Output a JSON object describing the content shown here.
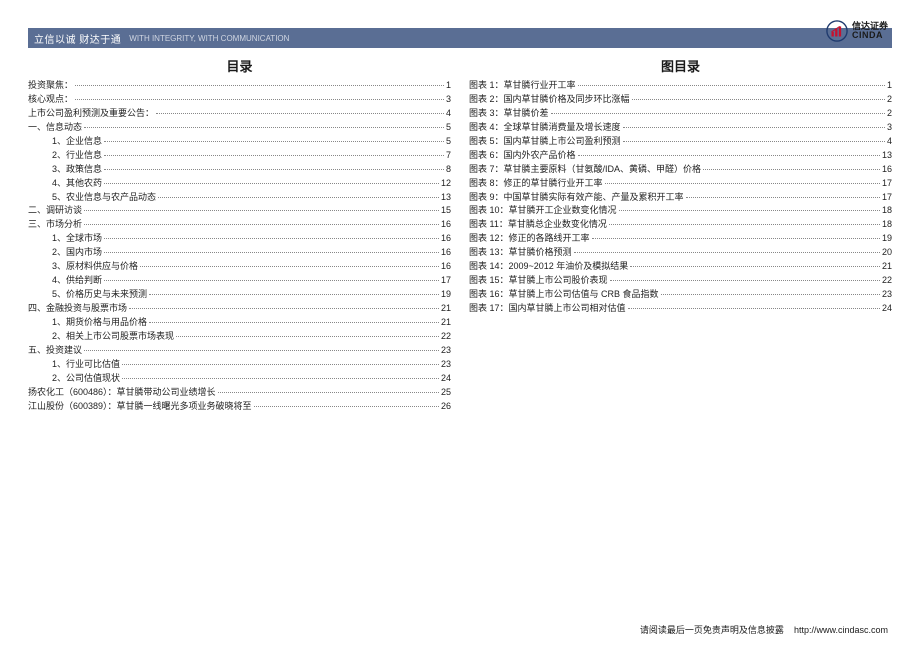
{
  "header": {
    "title": "立信以诚  财达于通",
    "subtitle": "WITH INTEGRITY, WITH COMMUNICATION"
  },
  "logo": {
    "cn": "信达证券",
    "en": "CINDA"
  },
  "left": {
    "title": "目录",
    "items": [
      {
        "label": "投资聚焦：",
        "page": "1",
        "indent": 0
      },
      {
        "label": "核心观点：",
        "page": "3",
        "indent": 0
      },
      {
        "label": "上市公司盈利预测及重要公告：",
        "page": "4",
        "indent": 0
      },
      {
        "label": "一、信息动态",
        "page": "5",
        "indent": 0
      },
      {
        "label": "1、企业信息",
        "page": "5",
        "indent": 1
      },
      {
        "label": "2、行业信息",
        "page": "7",
        "indent": 1
      },
      {
        "label": "3、政策信息",
        "page": "8",
        "indent": 1
      },
      {
        "label": "4、其他农药",
        "page": "12",
        "indent": 1
      },
      {
        "label": "5、农业信息与农产品动态",
        "page": "13",
        "indent": 1
      },
      {
        "label": "二、调研访谈",
        "page": "15",
        "indent": 0
      },
      {
        "label": "三、市场分析",
        "page": "16",
        "indent": 0
      },
      {
        "label": "1、全球市场",
        "page": "16",
        "indent": 1
      },
      {
        "label": "2、国内市场",
        "page": "16",
        "indent": 1
      },
      {
        "label": "3、原材料供应与价格",
        "page": "16",
        "indent": 1
      },
      {
        "label": "4、供给判断",
        "page": "17",
        "indent": 1
      },
      {
        "label": "5、价格历史与未来预测",
        "page": "19",
        "indent": 1
      },
      {
        "label": "四、金融投资与股票市场",
        "page": "21",
        "indent": 0
      },
      {
        "label": "1、期货价格与用品价格",
        "page": "21",
        "indent": 1
      },
      {
        "label": "2、相关上市公司股票市场表现",
        "page": "22",
        "indent": 1
      },
      {
        "label": "五、投资建议",
        "page": "23",
        "indent": 0
      },
      {
        "label": "1、行业可比估值",
        "page": "23",
        "indent": 1
      },
      {
        "label": "2、公司估值现状",
        "page": "24",
        "indent": 1
      },
      {
        "label": "扬农化工（600486）：草甘膦带动公司业绩增长",
        "page": "25",
        "indent": 0
      },
      {
        "label": "江山股份（600389）：草甘膦一线曙光多项业务破晓将至",
        "page": "26",
        "indent": 0
      }
    ]
  },
  "right": {
    "title": "图目录",
    "items": [
      {
        "label": "图表 1：草甘膦行业开工率",
        "page": "1"
      },
      {
        "label": "图表 2：国内草甘膦价格及同步环比涨幅",
        "page": "2"
      },
      {
        "label": "图表 3：草甘膦价差",
        "page": "2"
      },
      {
        "label": "图表 4：全球草甘膦消费量及增长速度",
        "page": "3"
      },
      {
        "label": "图表 5：国内草甘膦上市公司盈利预测",
        "page": "4"
      },
      {
        "label": "图表 6：国内外农产品价格",
        "page": "13"
      },
      {
        "label": "图表 7：草甘膦主要原料（甘氨酸/IDA、黄磷、甲醛）价格",
        "page": "16"
      },
      {
        "label": "图表 8：修正的草甘膦行业开工率",
        "page": "17"
      },
      {
        "label": "图表 9：中国草甘膦实际有效产能、产量及累积开工率",
        "page": "17"
      },
      {
        "label": "图表 10：草甘膦开工企业数变化情况",
        "page": "18"
      },
      {
        "label": "图表 11：草甘膦总企业数变化情况",
        "page": "18"
      },
      {
        "label": "图表 12：修正的各路线开工率",
        "page": "19"
      },
      {
        "label": "图表 13：草甘膦价格预测",
        "page": "20"
      },
      {
        "label": "图表 14：2009~2012 年油价及模拟结果",
        "page": "21"
      },
      {
        "label": "图表 15：草甘膦上市公司股价表现",
        "page": "22"
      },
      {
        "label": "图表 16：草甘膦上市公司估值与 CRB 食品指数",
        "page": "23"
      },
      {
        "label": "图表 17：国内草甘膦上市公司相对估值",
        "page": "24"
      }
    ]
  },
  "footer": {
    "text": "请阅读最后一页免责声明及信息披露",
    "url": "http://www.cindasc.com"
  },
  "colors": {
    "header_bg": "#5a6e94",
    "header_text": "#ffffff",
    "body_text": "#222222",
    "logo_red": "#c8102e",
    "logo_blue": "#1f3a6e"
  }
}
